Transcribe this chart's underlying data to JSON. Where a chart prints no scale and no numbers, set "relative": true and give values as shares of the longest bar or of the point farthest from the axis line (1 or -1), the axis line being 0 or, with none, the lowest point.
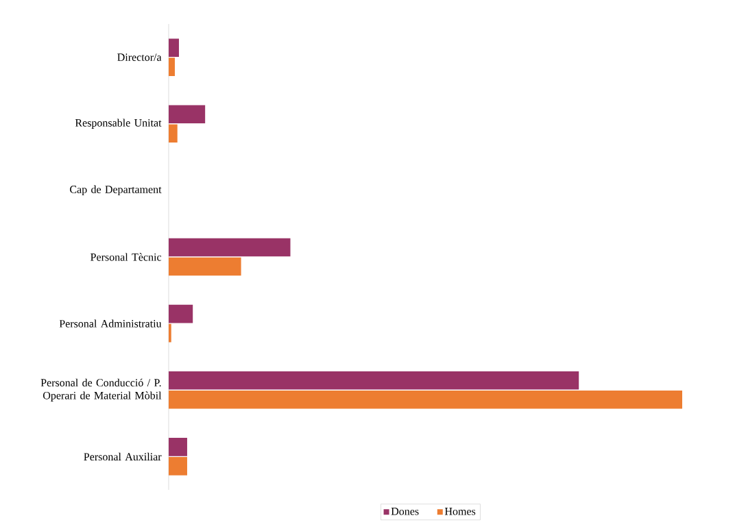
{
  "chart_data": {
    "type": "bar",
    "orientation": "horizontal",
    "relative": true,
    "categories": [
      "Director/a",
      "Responsable Unitat",
      "Cap de Departament",
      "Personal Tècnic",
      "Personal Administratiu",
      "Personal de Conducció / P. Operari de Material Mòbil",
      "Personal Auxiliar"
    ],
    "series": [
      {
        "name": "Dones",
        "color": "#993366",
        "values": [
          0.02,
          0.071,
          0,
          0.237,
          0.047,
          0.799,
          0.036
        ]
      },
      {
        "name": "Homes",
        "color": "#ed7d31",
        "values": [
          0.012,
          0.017,
          0,
          0.141,
          0.005,
          1,
          0.036
        ]
      }
    ],
    "legend": "bottom",
    "grid": false
  }
}
